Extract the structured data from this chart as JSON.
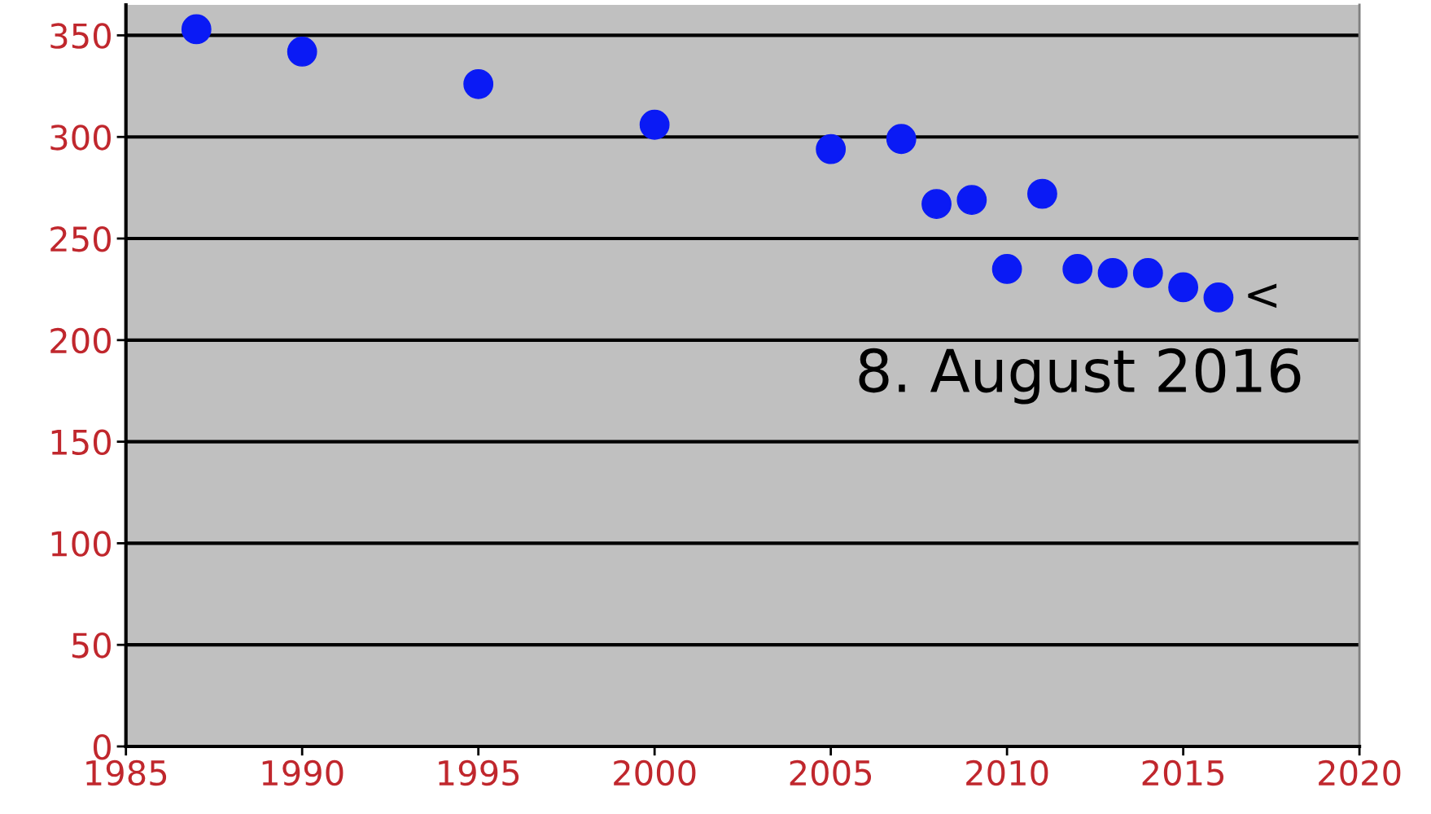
{
  "chart_data": {
    "type": "scatter",
    "x": [
      1987,
      1990,
      1995,
      2000,
      2005,
      2007,
      2008,
      2009,
      2010,
      2011,
      2012,
      2013,
      2014,
      2015,
      2016
    ],
    "series": [
      {
        "color": "#0a1af5",
        "values": [
          353,
          342,
          326,
          306,
          294,
          299,
          267,
          269,
          235,
          272,
          235,
          233,
          233,
          226,
          221
        ]
      }
    ],
    "xlim": [
      1985,
      2020
    ],
    "xticks": [
      1985,
      1990,
      1995,
      2000,
      2005,
      2010,
      2015,
      2020
    ],
    "ylim": [
      0,
      365
    ],
    "yticks": [
      0,
      50,
      100,
      150,
      200,
      250,
      300,
      350
    ],
    "grid": "y",
    "marker": "circle",
    "legend": false,
    "annotations": [
      {
        "text": "<",
        "x": 2016,
        "y": 221
      },
      "8. August 2016"
    ]
  }
}
